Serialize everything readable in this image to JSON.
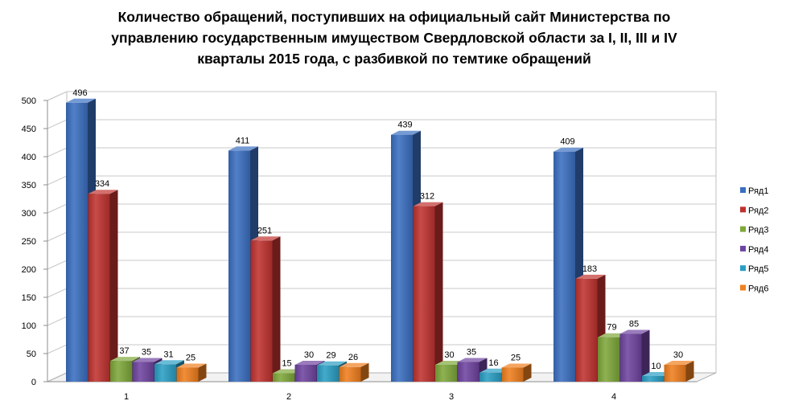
{
  "chart_data": {
    "type": "bar",
    "title": "Количество обращений, поступивших на официальный сайт Министерства по управлению государственным имуществом Свердловской области за I, II, III и IV кварталы 2015 года, с разбивкой по темтике обращений",
    "title_lines": [
      "Количество обращений, поступивших на официальный сайт Министерства по",
      "управлению государственным  имуществом Свердловской области за I, II, III и IV",
      "кварталы  2015 года,  с разбивкой по темтике обращений"
    ],
    "categories": [
      "1",
      "2",
      "3",
      "4"
    ],
    "series": [
      {
        "name": "Ряд1",
        "color": "#3a6fc1",
        "values": [
          496,
          411,
          439,
          409
        ]
      },
      {
        "name": "Ряд2",
        "color": "#c0322f",
        "values": [
          334,
          251,
          312,
          183
        ]
      },
      {
        "name": "Ряд3",
        "color": "#7fa83a",
        "values": [
          37,
          15,
          30,
          79
        ]
      },
      {
        "name": "Ряд4",
        "color": "#6f44a0",
        "values": [
          35,
          30,
          35,
          85
        ]
      },
      {
        "name": "Ряд5",
        "color": "#2a9ec4",
        "values": [
          31,
          29,
          16,
          10
        ]
      },
      {
        "name": "Ряд6",
        "color": "#f07f1e",
        "values": [
          25,
          26,
          25,
          30
        ]
      }
    ],
    "ylim": [
      0,
      500
    ],
    "yticks": [
      "0",
      "50",
      "100",
      "150",
      "200",
      "250",
      "300",
      "350",
      "400",
      "450",
      "500"
    ],
    "xlabel": "",
    "ylabel": "",
    "grid": true,
    "legend": "right",
    "style": "3d-column"
  }
}
